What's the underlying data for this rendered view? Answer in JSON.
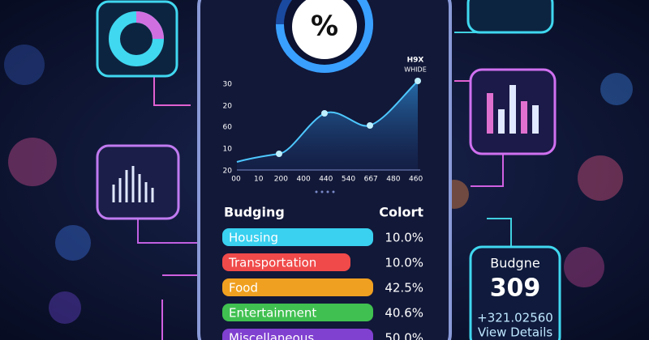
{
  "phone": {
    "gauge_label": "%",
    "chart": {
      "legend": [
        "H9X",
        "WHIDE"
      ],
      "y_axis_labels": [
        "30",
        "20",
        "60",
        "10",
        "20"
      ],
      "x_axis_labels": [
        "00",
        "10",
        "200",
        "400",
        "440",
        "540",
        "667",
        "480",
        "460"
      ]
    },
    "budget": {
      "headers": [
        "Budging",
        "Colort"
      ],
      "rows": [
        [
          "Housing",
          "10.0%"
        ],
        [
          "Transportation",
          "10.0%"
        ],
        [
          "Food",
          "42.5%"
        ],
        [
          "Entertainment",
          "40.6%"
        ],
        [
          "Miscellaneous",
          "50.0%"
        ]
      ]
    }
  },
  "side_card": {
    "title": "Budgne",
    "value": "309",
    "change": "+321.02560",
    "link": "View Details"
  }
}
